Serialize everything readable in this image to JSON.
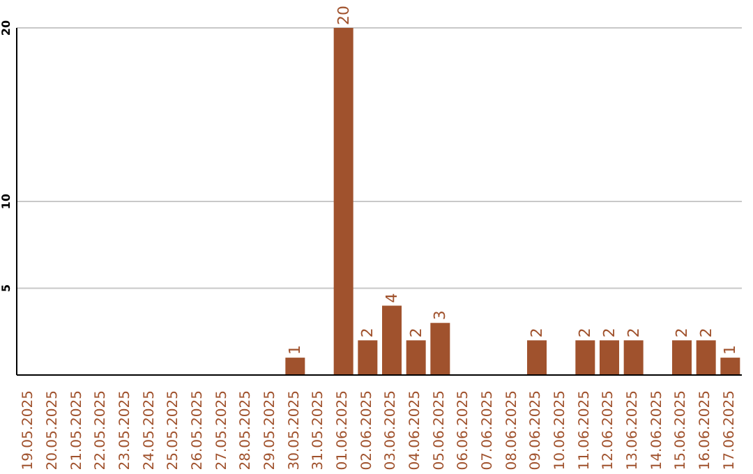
{
  "chart_data": {
    "type": "bar",
    "categories": [
      "19.05.2025",
      "20.05.2025",
      "21.05.2025",
      "22.05.2025",
      "23.05.2025",
      "24.05.2025",
      "25.05.2025",
      "26.05.2025",
      "27.05.2025",
      "28.05.2025",
      "29.05.2025",
      "30.05.2025",
      "31.05.2025",
      "01.06.2025",
      "02.06.2025",
      "03.06.2025",
      "04.06.2025",
      "05.06.2025",
      "06.06.2025",
      "07.06.2025",
      "08.06.2025",
      "09.06.2025",
      "10.06.2025",
      "11.06.2025",
      "12.06.2025",
      "13.06.2025",
      "14.06.2025",
      "15.06.2025",
      "16.06.2025",
      "17.06.2025"
    ],
    "values": [
      0,
      0,
      0,
      0,
      0,
      0,
      0,
      0,
      0,
      0,
      0,
      1,
      0,
      20,
      2,
      4,
      2,
      3,
      0,
      0,
      0,
      2,
      0,
      2,
      2,
      2,
      0,
      2,
      2,
      1
    ],
    "value_labels": [
      null,
      null,
      null,
      null,
      null,
      null,
      null,
      null,
      null,
      null,
      null,
      "1",
      null,
      "20",
      "2",
      "4",
      "2",
      "3",
      null,
      null,
      null,
      "2",
      null,
      "2",
      "2",
      "2",
      null,
      "2",
      "2",
      "1"
    ],
    "color": "#a0522d",
    "ylim": [
      0,
      20
    ],
    "yticks": [
      5,
      10,
      20
    ],
    "grid": "y"
  }
}
